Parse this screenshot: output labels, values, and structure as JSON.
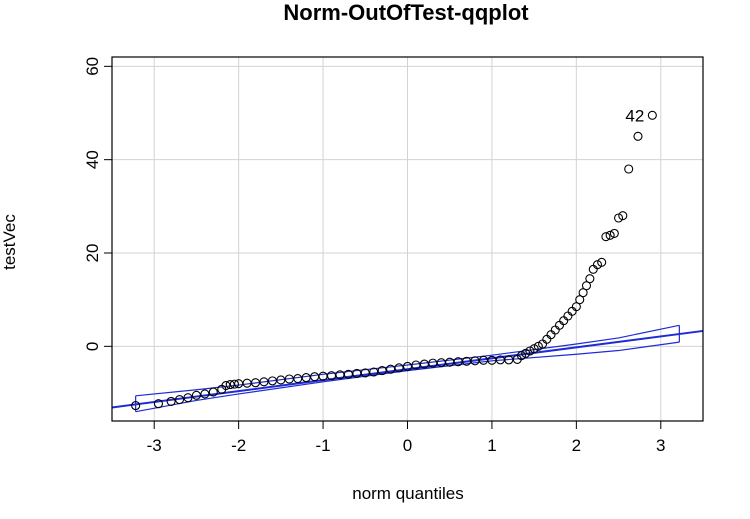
{
  "chart_data": {
    "type": "scatter",
    "title": "Norm-OutOfTest-qqplot",
    "xlabel": "norm quantiles",
    "ylabel": "testVec",
    "xlim": [
      -3.5,
      3.5
    ],
    "ylim": [
      -16,
      62
    ],
    "x_ticks": [
      -3,
      -2,
      -1,
      0,
      1,
      2,
      3
    ],
    "x_tick_labels": [
      "-3",
      "-2",
      "-1",
      "0",
      "1",
      "2",
      "3"
    ],
    "y_ticks": [
      0,
      20,
      40,
      60
    ],
    "y_tick_labels": [
      "0",
      "20",
      "40",
      "60"
    ],
    "grid": true,
    "colors": {
      "points": "#000000",
      "reference_line": "#1f2bd6",
      "envelope": "#1f2bd6",
      "grid": "#d3d3d3"
    },
    "reference_line": {
      "x": [
        -3.5,
        3.5
      ],
      "y": [
        -13.1,
        3.3
      ]
    },
    "confidence_envelope": {
      "x": [
        -3.22,
        -2.5,
        -2.0,
        -1.0,
        0.0,
        1.0,
        2.0,
        2.5,
        3.22
      ],
      "upper": [
        -10.6,
        -9.3,
        -8.3,
        -6.0,
        -4.0,
        -1.9,
        0.5,
        1.8,
        4.5
      ],
      "lower": [
        -14.0,
        -11.6,
        -10.2,
        -7.6,
        -5.2,
        -3.1,
        -1.7,
        -0.9,
        0.9
      ]
    },
    "points": {
      "x": [
        -3.22,
        -2.95,
        -2.8,
        -2.7,
        -2.6,
        -2.5,
        -2.4,
        -2.3,
        -2.2,
        -2.15,
        -2.1,
        -2.05,
        -2.0,
        -1.9,
        -1.8,
        -1.7,
        -1.6,
        -1.5,
        -1.4,
        -1.3,
        -1.2,
        -1.1,
        -1.0,
        -0.9,
        -0.8,
        -0.7,
        -0.6,
        -0.5,
        -0.4,
        -0.3,
        -0.2,
        -0.1,
        0.0,
        0.1,
        0.2,
        0.3,
        0.4,
        0.5,
        0.6,
        0.7,
        0.8,
        0.9,
        1.0,
        1.1,
        1.2,
        1.3,
        1.35,
        1.4,
        1.45,
        1.5,
        1.55,
        1.6,
        1.65,
        1.7,
        1.75,
        1.8,
        1.85,
        1.9,
        1.95,
        2.0,
        2.04,
        2.08,
        2.12,
        2.16,
        2.2,
        2.25,
        2.3,
        2.35,
        2.4,
        2.45,
        2.5,
        2.55,
        2.62,
        2.73,
        2.9
      ],
      "y": [
        -12.7,
        -12.3,
        -11.8,
        -11.4,
        -11.0,
        -10.5,
        -10.2,
        -9.8,
        -9.2,
        -8.4,
        -8.2,
        -8.1,
        -8.0,
        -7.9,
        -7.8,
        -7.6,
        -7.4,
        -7.2,
        -7.0,
        -6.9,
        -6.7,
        -6.5,
        -6.4,
        -6.3,
        -6.1,
        -6.0,
        -5.8,
        -5.7,
        -5.5,
        -5.2,
        -4.9,
        -4.6,
        -4.3,
        -4.0,
        -3.8,
        -3.6,
        -3.5,
        -3.4,
        -3.3,
        -3.2,
        -3.1,
        -3.0,
        -3.0,
        -2.9,
        -2.9,
        -2.8,
        -2.0,
        -1.5,
        -1.0,
        -0.5,
        0.0,
        0.5,
        1.5,
        2.5,
        3.5,
        4.5,
        5.5,
        6.5,
        7.5,
        8.5,
        10.0,
        11.5,
        13.0,
        14.5,
        16.5,
        17.5,
        18.0,
        23.5,
        23.8,
        24.2,
        27.5,
        28.0,
        38.0,
        45.0,
        49.5
      ]
    },
    "annotations": [
      {
        "text": "42",
        "x": 2.9,
        "y": 49.5
      }
    ]
  }
}
